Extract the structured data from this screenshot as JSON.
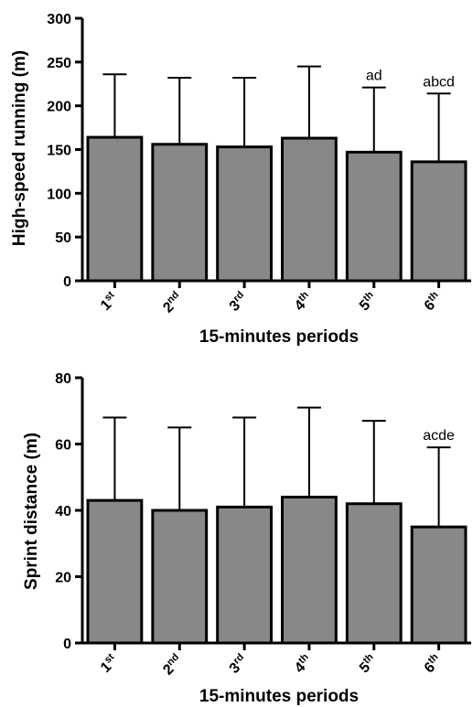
{
  "colors": {
    "bar_fill": "#888888",
    "outline": "#000000",
    "background": "#ffffff"
  },
  "chart_data": [
    {
      "type": "bar",
      "title": "",
      "xlabel": "15-minutes periods",
      "ylabel": "High-speed running (m)",
      "ylim": [
        0,
        300
      ],
      "yticks": [
        0,
        50,
        100,
        150,
        200,
        250,
        300
      ],
      "error_bars": "upper",
      "categories": [
        {
          "base": "1",
          "sup": "st"
        },
        {
          "base": "2",
          "sup": "nd"
        },
        {
          "base": "3",
          "sup": "rd"
        },
        {
          "base": "4",
          "sup": "th"
        },
        {
          "base": "5",
          "sup": "th"
        },
        {
          "base": "6",
          "sup": "th"
        }
      ],
      "values": [
        164,
        156,
        153,
        163,
        147,
        136
      ],
      "error_upper": [
        236,
        232,
        232,
        245,
        221,
        214
      ],
      "annotations": [
        "",
        "",
        "",
        "",
        "ad",
        "abcd"
      ],
      "grid": false,
      "legend": "none"
    },
    {
      "type": "bar",
      "title": "",
      "xlabel": "15-minutes periods",
      "ylabel": "Sprint distance (m)",
      "ylim": [
        0,
        80
      ],
      "yticks": [
        0,
        20,
        40,
        60,
        80
      ],
      "error_bars": "upper",
      "categories": [
        {
          "base": "1",
          "sup": "st"
        },
        {
          "base": "2",
          "sup": "nd"
        },
        {
          "base": "3",
          "sup": "rd"
        },
        {
          "base": "4",
          "sup": "th"
        },
        {
          "base": "5",
          "sup": "th"
        },
        {
          "base": "6",
          "sup": "th"
        }
      ],
      "values": [
        43,
        40,
        41,
        44,
        42,
        35
      ],
      "error_upper": [
        68,
        65,
        68,
        71,
        67,
        59
      ],
      "annotations": [
        "",
        "",
        "",
        "",
        "",
        "acde"
      ],
      "grid": false,
      "legend": "none"
    }
  ]
}
